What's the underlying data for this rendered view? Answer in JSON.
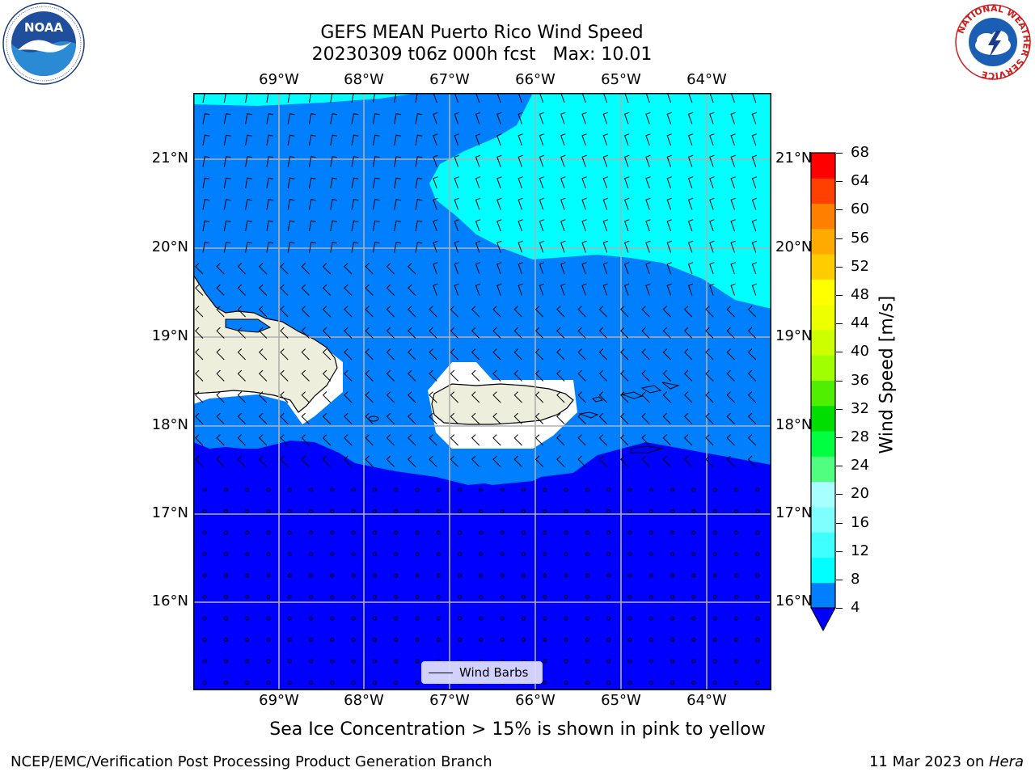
{
  "header": {
    "title_line1": "GEFS MEAN Puerto Rico Wind Speed",
    "title_line2": "20230309 t06z 000h fcst   Max: 10.01"
  },
  "logos": {
    "left_text": "NOAA",
    "left_ring_text": "NATIONAL OCEANIC AND ATMOSPHERIC ADMINISTRATION · U.S. DEPARTMENT OF COMMERCE",
    "right_ring_text": "NATIONAL WEATHER SERVICE"
  },
  "map": {
    "lon_labels": [
      "69°W",
      "68°W",
      "67°W",
      "66°W",
      "65°W",
      "64°W"
    ],
    "lat_labels": [
      "21°N",
      "20°N",
      "19°N",
      "18°N",
      "17°N",
      "16°N"
    ],
    "legend_label": "Wind Barbs",
    "colors": {
      "land": "#eeeedc",
      "speed_0_4": "#0000ff",
      "speed_4_8": "#0080ff",
      "speed_8_12": "#00ffff",
      "grid": "#b0b0b0"
    }
  },
  "colorbar": {
    "title": "Wind Speed [m/s]",
    "levels": [
      "68",
      "64",
      "60",
      "56",
      "52",
      "48",
      "44",
      "40",
      "36",
      "32",
      "28",
      "24",
      "20",
      "16",
      "12",
      "8",
      "4"
    ],
    "colors_bottom_to_top": [
      "#0080ff",
      "#00ffff",
      "#40ffff",
      "#80ffff",
      "#a8ffff",
      "#50ff80",
      "#00ff40",
      "#00dd00",
      "#50ee00",
      "#a0ff00",
      "#ccff00",
      "#eeff00",
      "#ffff00",
      "#ffcc00",
      "#ffaa00",
      "#ff8000",
      "#ff4000",
      "#ff0000"
    ],
    "under_color": "#0000ff"
  },
  "notes": {
    "sea_ice": "Sea Ice Concentration > 15% is shown in pink to yellow"
  },
  "footer": {
    "left": "NCEP/EMC/Verification Post Processing Product Generation Branch",
    "right_date": "11 Mar 2023 on ",
    "right_machine": "Hera"
  }
}
